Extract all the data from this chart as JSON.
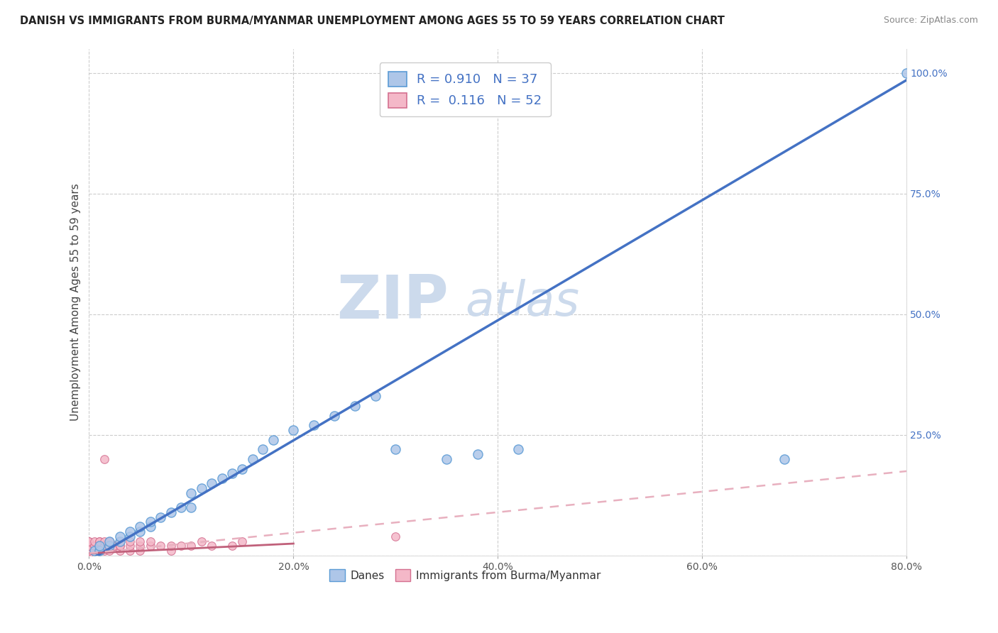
{
  "title": "DANISH VS IMMIGRANTS FROM BURMA/MYANMAR UNEMPLOYMENT AMONG AGES 55 TO 59 YEARS CORRELATION CHART",
  "source": "Source: ZipAtlas.com",
  "ylabel": "Unemployment Among Ages 55 to 59 years",
  "xlim": [
    0.0,
    0.8
  ],
  "ylim": [
    0.0,
    1.05
  ],
  "xtick_vals": [
    0.0,
    0.2,
    0.4,
    0.6,
    0.8
  ],
  "xtick_labels": [
    "0.0%",
    "20.0%",
    "40.0%",
    "60.0%",
    "80.0%"
  ],
  "ytick_vals": [
    0.0,
    0.25,
    0.5,
    0.75,
    1.0
  ],
  "ytick_labels": [
    "",
    "25.0%",
    "50.0%",
    "75.0%",
    "100.0%"
  ],
  "danes_fill_color": "#aec6e8",
  "danes_edge_color": "#5b9bd5",
  "immigrants_fill_color": "#f4b8c8",
  "immigrants_edge_color": "#d47090",
  "danes_line_color": "#4472c4",
  "immigrants_line_color": "#e8b0bf",
  "immigrants_solid_line_color": "#c0607a",
  "R_danes": 0.91,
  "N_danes": 37,
  "R_immigrants": 0.116,
  "N_immigrants": 52,
  "watermark_zip": "ZIP",
  "watermark_atlas": "atlas",
  "watermark_color": "#ccdaec",
  "background_color": "#ffffff",
  "grid_color": "#cccccc",
  "ytick_color": "#4472c4",
  "xtick_color": "#555555",
  "title_color": "#222222",
  "source_color": "#888888",
  "ylabel_color": "#444444",
  "danes_scatter_x": [
    0.005,
    0.01,
    0.01,
    0.02,
    0.02,
    0.03,
    0.03,
    0.04,
    0.04,
    0.05,
    0.05,
    0.06,
    0.06,
    0.07,
    0.08,
    0.09,
    0.1,
    0.1,
    0.11,
    0.12,
    0.13,
    0.14,
    0.15,
    0.16,
    0.17,
    0.18,
    0.2,
    0.22,
    0.24,
    0.26,
    0.28,
    0.3,
    0.35,
    0.38,
    0.42,
    0.68,
    0.8
  ],
  "danes_scatter_y": [
    0.01,
    0.01,
    0.02,
    0.02,
    0.03,
    0.03,
    0.04,
    0.04,
    0.05,
    0.05,
    0.06,
    0.06,
    0.07,
    0.08,
    0.09,
    0.1,
    0.1,
    0.13,
    0.14,
    0.15,
    0.16,
    0.17,
    0.18,
    0.2,
    0.22,
    0.24,
    0.26,
    0.27,
    0.29,
    0.31,
    0.33,
    0.22,
    0.2,
    0.21,
    0.22,
    0.2,
    1.0
  ],
  "immigrants_scatter_x": [
    0.0,
    0.0,
    0.0,
    0.0,
    0.0,
    0.0,
    0.0,
    0.0,
    0.005,
    0.005,
    0.005,
    0.005,
    0.01,
    0.01,
    0.01,
    0.01,
    0.01,
    0.01,
    0.015,
    0.015,
    0.015,
    0.015,
    0.02,
    0.02,
    0.02,
    0.02,
    0.02,
    0.025,
    0.025,
    0.03,
    0.03,
    0.03,
    0.03,
    0.04,
    0.04,
    0.04,
    0.05,
    0.05,
    0.05,
    0.06,
    0.06,
    0.07,
    0.08,
    0.08,
    0.09,
    0.1,
    0.11,
    0.12,
    0.14,
    0.15,
    0.3,
    0.015
  ],
  "immigrants_scatter_y": [
    0.005,
    0.01,
    0.01,
    0.02,
    0.02,
    0.02,
    0.03,
    0.03,
    0.01,
    0.02,
    0.02,
    0.03,
    0.01,
    0.01,
    0.02,
    0.02,
    0.03,
    0.03,
    0.01,
    0.02,
    0.02,
    0.03,
    0.01,
    0.02,
    0.02,
    0.03,
    0.03,
    0.02,
    0.02,
    0.01,
    0.02,
    0.02,
    0.03,
    0.01,
    0.02,
    0.03,
    0.01,
    0.02,
    0.03,
    0.02,
    0.03,
    0.02,
    0.01,
    0.02,
    0.02,
    0.02,
    0.03,
    0.02,
    0.02,
    0.03,
    0.04,
    0.2
  ],
  "danes_trend_x": [
    0.0,
    0.8
  ],
  "danes_trend_y": [
    -0.01,
    0.985
  ],
  "immigrants_solid_trend_x": [
    0.0,
    0.2
  ],
  "immigrants_solid_trend_y": [
    0.005,
    0.025
  ],
  "immigrants_dashed_trend_x": [
    0.0,
    0.8
  ],
  "immigrants_dashed_trend_y": [
    0.005,
    0.175
  ]
}
